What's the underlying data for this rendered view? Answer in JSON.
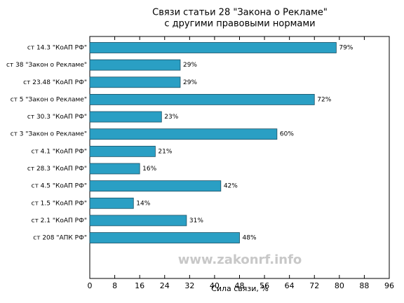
{
  "chart_data": {
    "type": "barh",
    "title": [
      "Связи статьи 28 \"Закона о Рекламе\"",
      "с другими правовыми нормами"
    ],
    "categories": [
      "ст 14.3 \"КоАП РФ\"",
      "ст 38 \"Закон о Рекламе\"",
      "ст 23.48 \"КоАП РФ\"",
      "ст 5 \"Закон о Рекламе\"",
      "ст 30.3 \"КоАП РФ\"",
      "ст 3 \"Закон о Рекламе\"",
      "ст 4.1 \"КоАП РФ\"",
      "ст 28.3 \"КоАП РФ\"",
      "ст 4.5 \"КоАП РФ\"",
      "ст 1.5 \"КоАП РФ\"",
      "ст 2.1 \"КоАП РФ\"",
      "ст 208 \"АПК РФ\""
    ],
    "values": [
      79,
      29,
      29,
      72,
      23,
      60,
      21,
      16,
      42,
      14,
      31,
      48
    ],
    "value_labels": [
      "79%",
      "29%",
      "29%",
      "72%",
      "23%",
      "60%",
      "21%",
      "16%",
      "42%",
      "14%",
      "31%",
      "48%"
    ],
    "color": "#2a9fc4",
    "xlabel": "Сила связи, %",
    "xlim": [
      0,
      96
    ],
    "xticks": [
      0,
      8,
      16,
      24,
      32,
      40,
      48,
      56,
      64,
      72,
      80,
      88,
      96
    ],
    "watermark": "www.zakonrf.info"
  }
}
